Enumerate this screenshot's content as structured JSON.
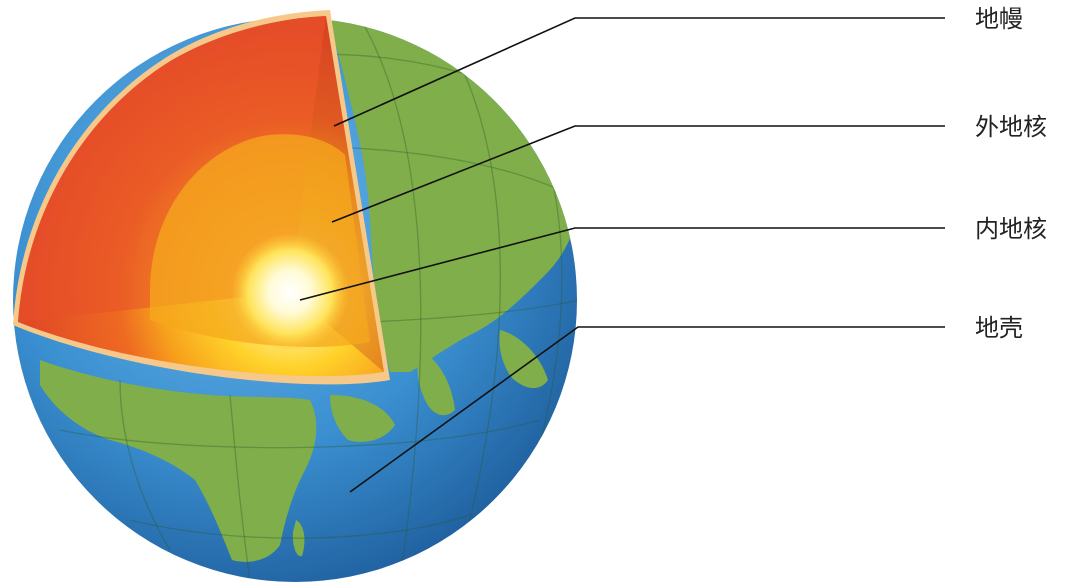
{
  "labels": [
    {
      "id": "mantle",
      "text": "地幔"
    },
    {
      "id": "outer_core",
      "text": "外地核"
    },
    {
      "id": "inner_core",
      "text": "内地核"
    },
    {
      "id": "crust",
      "text": "地壳"
    }
  ],
  "colors": {
    "ocean": "#3a8fd0",
    "land": "#7fae4a",
    "mantle": "#e8502a",
    "outer_core": "#f6a81e",
    "inner_core": "#fff5c0",
    "crust_rim": "#f6c98a",
    "leader_line": "#111111",
    "label_text": "#222222"
  },
  "icons": [
    "earth-cutaway-illustration"
  ]
}
